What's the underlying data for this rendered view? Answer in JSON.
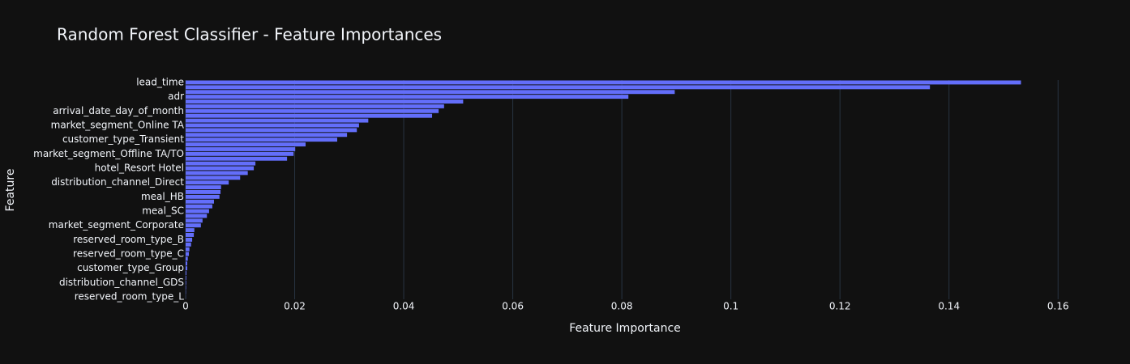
{
  "chart_data": {
    "type": "bar",
    "orientation": "horizontal",
    "title": "Random Forest Classifier - Feature Importances",
    "xlabel": "Feature Importance",
    "ylabel": "Feature",
    "categories": [
      "lead_time",
      null,
      null,
      "adr",
      null,
      null,
      "arrival_date_day_of_month",
      null,
      null,
      "market_segment_Online TA",
      null,
      null,
      "customer_type_Transient",
      null,
      null,
      "market_segment_Offline TA/TO",
      null,
      null,
      "hotel_Resort Hotel",
      null,
      null,
      "distribution_channel_Direct",
      null,
      null,
      "meal_HB",
      null,
      null,
      "meal_SC",
      null,
      null,
      "market_segment_Corporate",
      null,
      null,
      "reserved_room_type_B",
      null,
      null,
      "reserved_room_type_C",
      null,
      null,
      "customer_type_Group",
      null,
      null,
      "distribution_channel_GDS",
      null,
      null,
      "reserved_room_type_L"
    ],
    "values": [
      0.1532,
      0.1365,
      0.0897,
      0.0812,
      0.0509,
      0.0474,
      0.0464,
      0.0452,
      0.0335,
      0.0318,
      0.0314,
      0.0296,
      0.0278,
      0.022,
      0.0201,
      0.0198,
      0.0186,
      0.0128,
      0.0125,
      0.0114,
      0.01,
      0.0079,
      0.0065,
      0.0064,
      0.0062,
      0.0052,
      0.0049,
      0.0043,
      0.0039,
      0.0031,
      0.0028,
      0.0016,
      0.0015,
      0.0012,
      0.001,
      0.0007,
      0.0006,
      0.0004,
      0.0003,
      0.0003,
      0.00015,
      0.00012,
      0.0001,
      8e-05,
      5e-05,
      2e-05
    ],
    "color": "#636efa",
    "xlim": [
      0,
      0.1613
    ],
    "xticks": [
      0,
      0.02,
      0.04,
      0.06,
      0.08,
      0.1,
      0.12,
      0.14,
      0.16
    ],
    "grid": true
  }
}
